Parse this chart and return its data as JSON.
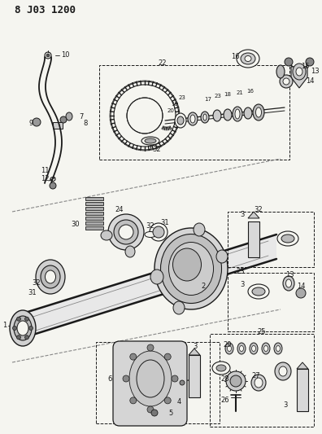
{
  "title": "8 J03 1200",
  "bg_color": "#f5f5f0",
  "line_color": "#1a1a1a",
  "fig_width": 3.96,
  "fig_height": 5.33,
  "dpi": 100
}
